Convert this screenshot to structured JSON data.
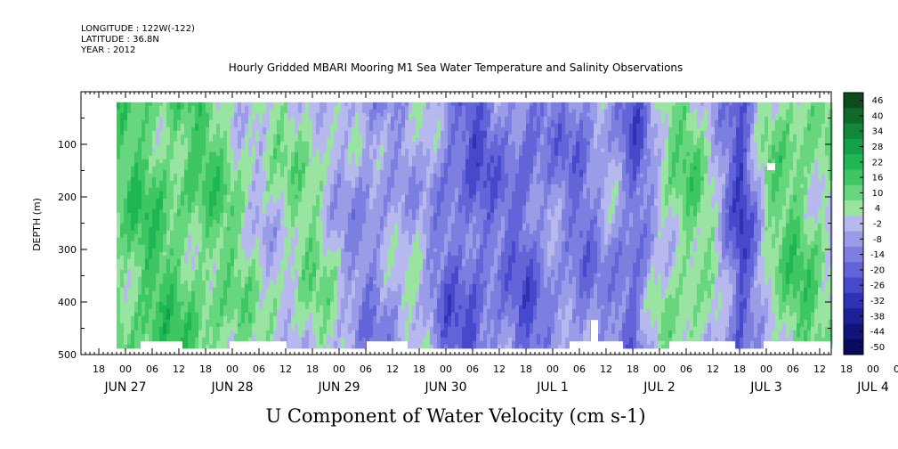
{
  "header": {
    "longitude": "LONGITUDE : 122W(-122)",
    "latitude": "LATITUDE : 36.8N",
    "year": "YEAR : 2012"
  },
  "chart_data": {
    "type": "heatmap",
    "title": "Hourly Gridded MBARI Mooring M1 Sea Water Temperature and Salinity Observations",
    "xlabel": "U Component of Water Velocity (cm s-1)",
    "ylabel": "DEPTH (m)",
    "ylim": [
      500,
      0
    ],
    "y_ticks": [
      100,
      200,
      300,
      400,
      500
    ],
    "x_hour_ticks": [
      "18",
      "00",
      "06",
      "12",
      "18",
      "00",
      "06",
      "12",
      "18",
      "00",
      "06",
      "12",
      "18",
      "00",
      "06",
      "12",
      "18",
      "00",
      "06",
      "12",
      "18",
      "00",
      "06",
      "12",
      "18",
      "00",
      "06",
      "12",
      "18",
      "00",
      "06",
      "12"
    ],
    "x_date_labels": [
      "JUN 27",
      "JUN 28",
      "JUN 29",
      "JUN 30",
      "JUL  1",
      "JUL  2",
      "JUL  3",
      "JUL  4"
    ],
    "colorbar": {
      "labels": [
        "46",
        "40",
        "34",
        "28",
        "22",
        "16",
        "10",
        "4",
        "-2",
        "-8",
        "-14",
        "-20",
        "-26",
        "-32",
        "-38",
        "-44",
        "-50"
      ],
      "colors": [
        "#0d4a1e",
        "#0f6a2a",
        "#12873a",
        "#14a047",
        "#1fb653",
        "#3ec663",
        "#68d67e",
        "#98e4a0",
        "#b7b9ee",
        "#9a9ce8",
        "#7d7fe0",
        "#6264d8",
        "#4749cc",
        "#3032b4",
        "#1e2096",
        "#121378",
        "#080a5a"
      ]
    },
    "data_extent": {
      "x_start_label": "JUN 27 22:00",
      "depth_top_m": 20,
      "depth_bottom_m": 485
    },
    "description_bands": [
      {
        "day": "JUN 27-28",
        "u_range": [
          4,
          22
        ]
      },
      {
        "day": "JUN 29",
        "u_range": [
          -14,
          10
        ]
      },
      {
        "day": "JUN 30",
        "u_range": [
          -20,
          4
        ]
      },
      {
        "day": "JUL 1",
        "u_range": [
          -20,
          4
        ]
      },
      {
        "day": "JUL 2",
        "u_range": [
          -26,
          16
        ]
      },
      {
        "day": "JUL 3",
        "u_range": [
          -8,
          22
        ]
      },
      {
        "day": "JUL 4",
        "u_range": [
          -2,
          22
        ]
      }
    ]
  }
}
